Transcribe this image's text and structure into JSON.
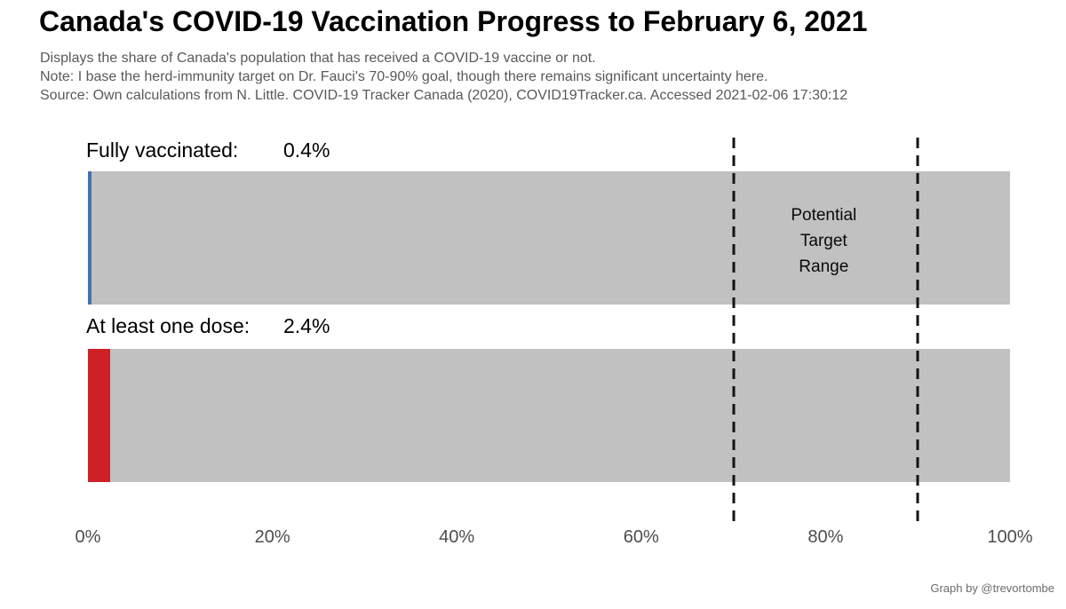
{
  "page": {
    "title": "Canada's COVID-19 Vaccination Progress to February 6, 2021",
    "subtitle_lines": [
      "Displays the share of Canada's population that has received a COVID-19 vaccine or not.",
      "Note: I base the herd-immunity target on Dr. Fauci's 70-90% goal, though there remains significant uncertainty here.",
      "Source: Own calculations from N. Little. COVID-19 Tracker Canada (2020), COVID19Tracker.ca. Accessed 2021-02-06 17:30:12"
    ],
    "credit": "Graph by @trevortombe"
  },
  "chart_data": {
    "type": "bar",
    "orientation": "horizontal",
    "title": "Canada's COVID-19 Vaccination Progress to February 6, 2021",
    "categories": [
      "Fully vaccinated",
      "At least one dose"
    ],
    "series_labels": [
      "Fully vaccinated:",
      "At least one dose:"
    ],
    "values": [
      0.4,
      2.4
    ],
    "value_labels": [
      "0.4%",
      "2.4%"
    ],
    "track_full_value": 100,
    "xlim": [
      0,
      100
    ],
    "x_ticks": [
      "0%",
      "20%",
      "40%",
      "60%",
      "80%",
      "100%"
    ],
    "x_tick_values": [
      0,
      20,
      40,
      60,
      80,
      100
    ],
    "bar_colors": [
      "#4470B3",
      "#CD2127"
    ],
    "track_color": "#C1C1C1",
    "target_range": {
      "from_pct": 70,
      "to_pct": 90,
      "label_lines": [
        "Potential",
        "Target",
        "Range"
      ]
    },
    "grid": false,
    "legend": "none"
  },
  "colors": {
    "accent_blue": "#4470B3",
    "accent_red": "#CD2127",
    "bar_track": "#C1C1C1",
    "subtitle_text": "#595959",
    "axis_text": "#4D4D4D",
    "credit_text": "#6B6B6B",
    "dashed_line": "#141414"
  }
}
